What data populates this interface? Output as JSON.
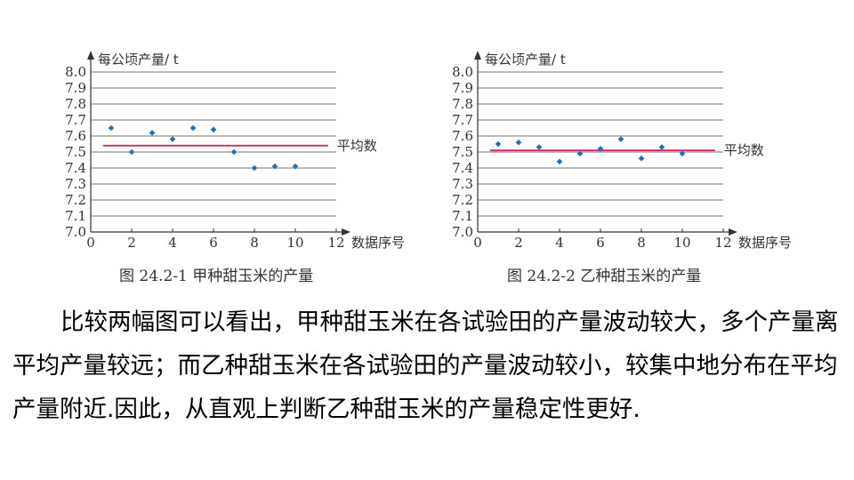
{
  "chart_data": [
    {
      "type": "scatter",
      "ylabel": "每公顷产量/ t",
      "xlabel": "数据序号",
      "xlim": [
        0,
        12
      ],
      "ylim": [
        7.0,
        8.0
      ],
      "x_ticks": [
        0,
        2,
        4,
        6,
        8,
        10,
        12
      ],
      "y_ticks": [
        "7.0",
        "7.1",
        "7.2",
        "7.3",
        "7.4",
        "7.5",
        "7.6",
        "7.7",
        "7.8",
        "7.9",
        "8.0"
      ],
      "grid": "horizontal",
      "series": [
        {
          "x": [
            1,
            2,
            3,
            4,
            5,
            6,
            7,
            8,
            9,
            10
          ],
          "values": [
            7.65,
            7.5,
            7.62,
            7.58,
            7.65,
            7.64,
            7.5,
            7.4,
            7.41,
            7.41
          ]
        }
      ],
      "mean": 7.54,
      "mean_label": "平均数",
      "colors": {
        "points": "#1f6fb5",
        "mean_line": "#d6266f",
        "grid": "#777777"
      },
      "caption": "图 24.2-1   甲种甜玉米的产量"
    },
    {
      "type": "scatter",
      "ylabel": "每公顷产量/ t",
      "xlabel": "数据序号",
      "xlim": [
        0,
        12
      ],
      "ylim": [
        7.0,
        8.0
      ],
      "x_ticks": [
        0,
        2,
        4,
        6,
        8,
        10,
        12
      ],
      "y_ticks": [
        "7.0",
        "7.1",
        "7.2",
        "7.3",
        "7.4",
        "7.5",
        "7.6",
        "7.7",
        "7.8",
        "7.9",
        "8.0"
      ],
      "grid": "horizontal",
      "series": [
        {
          "x": [
            1,
            2,
            3,
            4,
            5,
            6,
            7,
            8,
            9,
            10
          ],
          "values": [
            7.55,
            7.56,
            7.53,
            7.44,
            7.49,
            7.52,
            7.58,
            7.46,
            7.53,
            7.49
          ]
        }
      ],
      "mean": 7.51,
      "mean_label": "平均数",
      "colors": {
        "points": "#1f6fb5",
        "mean_line": "#d6266f",
        "grid": "#777777"
      },
      "caption": "图 24.2-2   乙种甜玉米的产量"
    }
  ],
  "paragraph": "比较两幅图可以看出，甲种甜玉米在各试验田的产量波动较大，多个产量离平均产量较远；而乙种甜玉米在各试验田的产量波动较小，较集中地分布在平均产量附近.因此，从直观上判断乙种甜玉米的产量稳定性更好."
}
